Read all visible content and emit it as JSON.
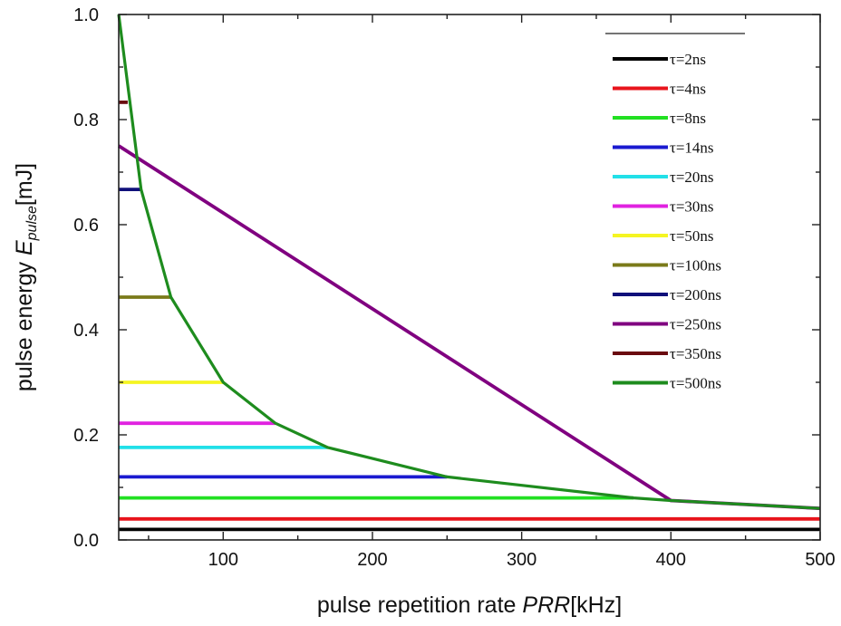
{
  "chart_data": {
    "type": "line",
    "xlabel": {
      "prefix": "pulse repetition rate ",
      "var": "PRR",
      "unit": "[kHz]"
    },
    "ylabel": {
      "prefix": "pulse energy ",
      "var": "E",
      "sub": "pulse",
      "unit": "[mJ]"
    },
    "xlim": [
      30,
      500
    ],
    "ylim": [
      0,
      1.0
    ],
    "x_ticks": [
      100,
      200,
      300,
      400,
      500
    ],
    "y_ticks": [
      "0.0",
      "0.2",
      "0.4",
      "0.6",
      "0.8",
      "1.0"
    ],
    "grid": false,
    "legend_position": "top-right",
    "series": [
      {
        "name": "τ=2ns",
        "color": "#000000",
        "values": [
          [
            30,
            0.02
          ],
          [
            500,
            0.02
          ]
        ]
      },
      {
        "name": "τ=4ns",
        "color": "#e8141c",
        "values": [
          [
            30,
            0.04
          ],
          [
            500,
            0.04
          ]
        ]
      },
      {
        "name": "τ=8ns",
        "color": "#22e022",
        "values": [
          [
            30,
            0.08
          ],
          [
            375,
            0.08
          ]
        ]
      },
      {
        "name": "τ=14ns",
        "color": "#1a1ad0",
        "values": [
          [
            30,
            0.12
          ],
          [
            250,
            0.12
          ]
        ]
      },
      {
        "name": "τ=20ns",
        "color": "#22e0e8",
        "values": [
          [
            30,
            0.176
          ],
          [
            170,
            0.176
          ]
        ]
      },
      {
        "name": "τ=30ns",
        "color": "#e022e0",
        "values": [
          [
            30,
            0.222
          ],
          [
            135,
            0.222
          ]
        ]
      },
      {
        "name": "τ=50ns",
        "color": "#f5f522",
        "values": [
          [
            30,
            0.3
          ],
          [
            100,
            0.3
          ]
        ]
      },
      {
        "name": "τ=100ns",
        "color": "#7a7a1a",
        "values": [
          [
            30,
            0.462
          ],
          [
            65,
            0.462
          ]
        ]
      },
      {
        "name": "τ=200ns",
        "color": "#10107a",
        "values": [
          [
            30,
            0.667
          ],
          [
            45,
            0.667
          ]
        ]
      },
      {
        "name": "τ=250ns",
        "color": "#800080",
        "values": [
          [
            30,
            0.75
          ],
          [
            400,
            0.075
          ],
          [
            500,
            0.06
          ]
        ]
      },
      {
        "name": "τ=350ns",
        "color": "#6a0a10",
        "values": [
          [
            30,
            0.833
          ],
          [
            36,
            0.833
          ]
        ]
      },
      {
        "name": "τ=500ns",
        "color": "#1e8c1e",
        "values": [
          [
            30,
            1.0
          ],
          [
            45,
            0.667
          ],
          [
            65,
            0.462
          ],
          [
            100,
            0.3
          ],
          [
            135,
            0.222
          ],
          [
            170,
            0.176
          ],
          [
            250,
            0.12
          ],
          [
            375,
            0.08
          ],
          [
            400,
            0.075
          ],
          [
            500,
            0.06
          ]
        ]
      }
    ]
  }
}
